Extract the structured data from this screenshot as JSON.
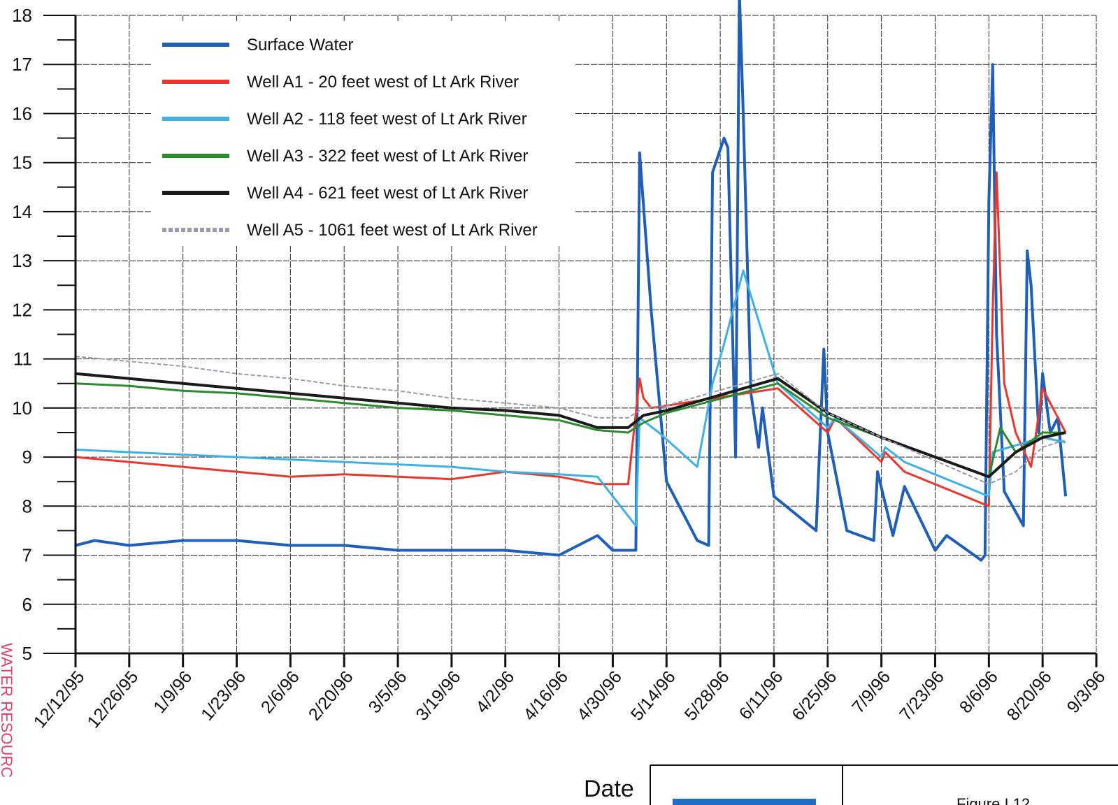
{
  "chart_data": {
    "type": "line",
    "xlabel": "Date",
    "ylim": [
      5,
      18
    ],
    "grid": true,
    "legend_position": "top-left",
    "x_ticks": [
      "12/12/95",
      "12/26/95",
      "1/9/96",
      "1/23/96",
      "2/6/96",
      "2/20/96",
      "3/5/96",
      "3/19/96",
      "4/2/96",
      "4/16/96",
      "4/30/96",
      "5/14/96",
      "5/28/96",
      "6/11/96",
      "6/25/96",
      "7/9/96",
      "7/23/96",
      "8/6/96",
      "8/20/96",
      "9/3/96"
    ],
    "y_ticks": [
      5,
      6,
      7,
      8,
      9,
      10,
      11,
      12,
      13,
      14,
      15,
      16,
      17,
      18
    ],
    "series": [
      {
        "name": "Surface Water",
        "color": "#1f5fb8",
        "x": [
          "12/12/95",
          "12/17/95",
          "12/26/95",
          "1/9/96",
          "1/23/96",
          "2/6/96",
          "2/20/96",
          "3/5/96",
          "3/19/96",
          "4/2/96",
          "4/16/96",
          "4/26/96",
          "4/30/96",
          "5/6/96",
          "5/7/96",
          "5/10/96",
          "5/14/96",
          "5/22/96",
          "5/25/96",
          "5/26/96",
          "5/29/96",
          "5/30/96",
          "6/1/96",
          "6/2/96",
          "6/3/96",
          "6/5/96",
          "6/7/96",
          "6/8/96",
          "6/11/96",
          "6/22/96",
          "6/24/96",
          "6/25/96",
          "6/30/96",
          "7/7/96",
          "7/8/96",
          "7/12/96",
          "7/15/96",
          "7/23/96",
          "7/26/96",
          "8/4/96",
          "8/5/96",
          "8/6/96",
          "8/7/96",
          "8/8/96",
          "8/10/96",
          "8/15/96",
          "8/16/96",
          "8/17/96",
          "8/19/96",
          "8/20/96",
          "8/22/96",
          "8/24/96",
          "8/26/96"
        ],
        "y": [
          7.2,
          7.3,
          7.2,
          7.3,
          7.3,
          7.2,
          7.2,
          7.1,
          7.1,
          7.1,
          7.0,
          7.4,
          7.1,
          7.1,
          15.2,
          12.0,
          8.5,
          7.3,
          7.2,
          14.8,
          15.5,
          15.3,
          9.0,
          18.5,
          16.0,
          10.3,
          9.2,
          10.0,
          8.2,
          7.5,
          11.2,
          9.5,
          7.5,
          7.3,
          8.7,
          7.4,
          8.4,
          7.1,
          7.4,
          6.9,
          7.0,
          14.2,
          17.0,
          11.5,
          8.3,
          7.6,
          13.2,
          12.5,
          9.5,
          10.7,
          9.5,
          9.8,
          8.2
        ]
      },
      {
        "name": "Well A1 - 20 feet west of Lt Ark River",
        "color": "#e8382e",
        "x": [
          "12/12/95",
          "12/26/95",
          "1/9/96",
          "1/23/96",
          "2/6/96",
          "2/20/96",
          "3/5/96",
          "3/19/96",
          "4/2/96",
          "4/16/96",
          "4/26/96",
          "5/4/96",
          "5/7/96",
          "5/8/96",
          "5/10/96",
          "6/12/96",
          "6/25/96",
          "6/27/96",
          "7/9/96",
          "7/10/96",
          "7/15/96",
          "8/6/96",
          "8/7/96",
          "8/8/96",
          "8/10/96",
          "8/13/96",
          "8/17/96",
          "8/20/96",
          "8/26/96"
        ],
        "y": [
          9.0,
          8.9,
          8.8,
          8.7,
          8.6,
          8.65,
          8.6,
          8.55,
          8.7,
          8.6,
          8.45,
          8.45,
          10.6,
          10.2,
          10.0,
          10.4,
          9.5,
          9.8,
          8.9,
          9.1,
          8.7,
          8.0,
          12.0,
          14.8,
          10.5,
          9.5,
          8.8,
          10.4,
          9.5
        ]
      },
      {
        "name": "Well A2 - 118 feet west of Lt Ark River",
        "color": "#3fb0e6",
        "x": [
          "12/12/95",
          "12/26/95",
          "1/9/96",
          "1/23/96",
          "2/6/96",
          "2/20/96",
          "3/5/96",
          "3/19/96",
          "4/2/96",
          "4/16/96",
          "4/26/96",
          "5/6/96",
          "5/7/96",
          "5/12/96",
          "5/22/96",
          "5/26/96",
          "5/29/96",
          "6/3/96",
          "6/12/96",
          "6/25/96",
          "6/27/96",
          "7/9/96",
          "7/10/96",
          "7/15/96",
          "8/6/96",
          "8/7/96",
          "8/20/96",
          "8/26/96"
        ],
        "y": [
          9.15,
          9.1,
          9.05,
          9.0,
          8.95,
          8.9,
          8.85,
          8.8,
          8.7,
          8.65,
          8.6,
          7.6,
          9.8,
          9.5,
          8.8,
          10.5,
          11.3,
          12.8,
          10.5,
          9.6,
          9.8,
          9.0,
          9.2,
          8.9,
          8.2,
          9.1,
          9.4,
          9.3
        ]
      },
      {
        "name": "Well A3 - 322 feet west of Lt Ark River",
        "color": "#2e8a2e",
        "x": [
          "12/12/95",
          "12/26/95",
          "1/9/96",
          "1/23/96",
          "2/6/96",
          "2/20/96",
          "3/5/96",
          "3/19/96",
          "4/2/96",
          "4/16/96",
          "4/26/96",
          "5/4/96",
          "5/8/96",
          "5/14/96",
          "6/12/96",
          "6/25/96",
          "7/9/96",
          "8/6/96",
          "8/9/96",
          "8/13/96",
          "8/20/96",
          "8/26/96"
        ],
        "y": [
          10.5,
          10.45,
          10.35,
          10.3,
          10.2,
          10.1,
          10.0,
          9.95,
          9.85,
          9.75,
          9.55,
          9.5,
          9.7,
          9.9,
          10.5,
          9.8,
          9.4,
          8.6,
          9.6,
          9.1,
          9.5,
          9.5
        ]
      },
      {
        "name": "Well A4 - 621 feet west of Lt Ark River",
        "color": "#1a1a1a",
        "x": [
          "12/12/95",
          "12/26/95",
          "1/9/96",
          "1/23/96",
          "2/6/96",
          "2/20/96",
          "3/5/96",
          "3/19/96",
          "4/2/96",
          "4/16/96",
          "4/26/96",
          "5/4/96",
          "5/8/96",
          "5/14/96",
          "6/12/96",
          "6/25/96",
          "7/9/96",
          "8/6/96",
          "8/13/96",
          "8/20/96",
          "8/26/96"
        ],
        "y": [
          10.7,
          10.6,
          10.5,
          10.4,
          10.3,
          10.2,
          10.1,
          10.0,
          9.95,
          9.85,
          9.6,
          9.6,
          9.85,
          9.95,
          10.6,
          9.9,
          9.4,
          8.6,
          9.1,
          9.4,
          9.5
        ]
      },
      {
        "name": "Well A5 - 1061 feet west of Lt Ark River",
        "color": "#9a9aaa",
        "x": [
          "12/12/95",
          "12/26/95",
          "1/9/96",
          "1/23/96",
          "2/6/96",
          "2/20/96",
          "3/5/96",
          "3/19/96",
          "4/2/96",
          "4/16/96",
          "4/26/96",
          "5/4/96",
          "5/8/96",
          "5/14/96",
          "6/12/96",
          "6/25/96",
          "7/9/96",
          "8/6/96",
          "8/13/96",
          "8/20/96",
          "8/26/96"
        ],
        "y": [
          11.05,
          10.95,
          10.85,
          10.7,
          10.6,
          10.45,
          10.35,
          10.2,
          10.1,
          10.0,
          9.8,
          9.8,
          10.0,
          10.05,
          10.7,
          9.9,
          9.4,
          8.45,
          8.7,
          9.2,
          9.35
        ]
      }
    ]
  },
  "footer": {
    "figure_label": "Figure I.12",
    "side_text": "WATER RESOURC"
  }
}
